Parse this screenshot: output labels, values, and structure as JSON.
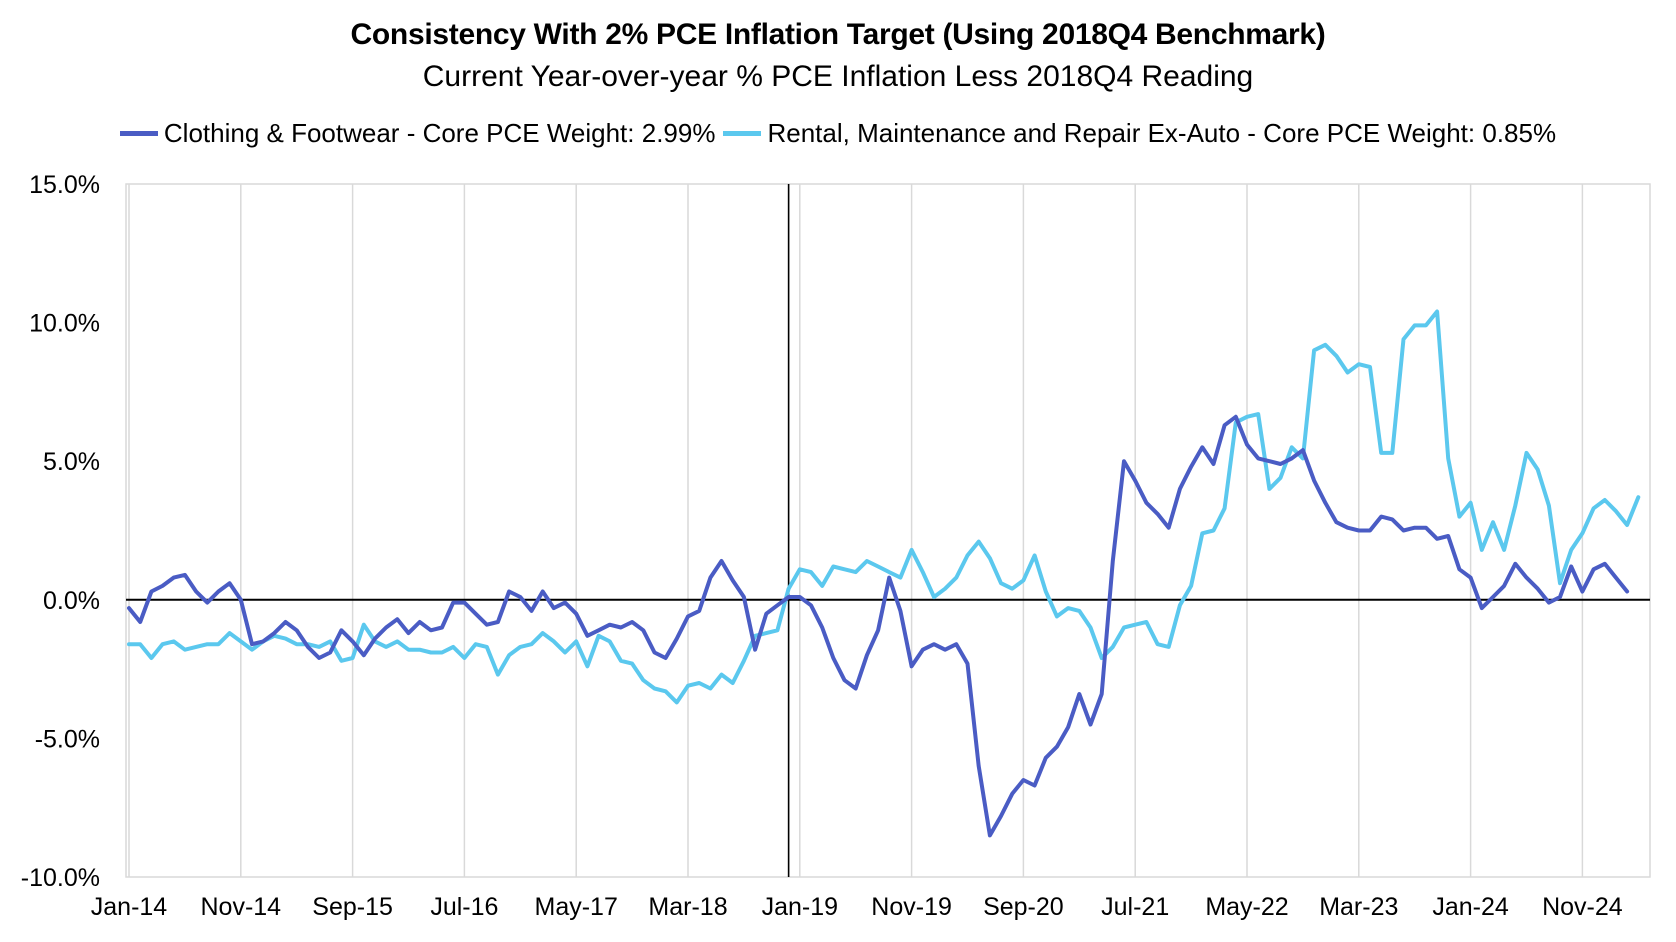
{
  "chart_data": {
    "type": "line",
    "title": "Consistency With 2% PCE Inflation Target (Using 2018Q4 Benchmark)",
    "subtitle": "Current Year-over-year % PCE Inflation Less 2018Q4 Reading",
    "legend_position": "top",
    "grid": "vertical",
    "ylim": [
      -10,
      15
    ],
    "y_ticks": [
      15,
      10,
      5,
      0,
      -5,
      -10
    ],
    "y_tick_labels": [
      "15.0%",
      "10.0%",
      "5.0%",
      "0.0%",
      "-5.0%",
      "-10.0%"
    ],
    "x_start": "2014-01",
    "x_end": "2025-03",
    "x_tick_labels": [
      "Jan-14",
      "Nov-14",
      "Sep-15",
      "Jul-16",
      "May-17",
      "Mar-18",
      "Jan-19",
      "Nov-19",
      "Sep-20",
      "Jul-21",
      "May-22",
      "Mar-23",
      "Jan-24",
      "Nov-24"
    ],
    "reference_line": "Dec-18",
    "series": [
      {
        "name": "Clothing & Footwear - Core PCE Weight: 2.99%",
        "color": "#4a5cc4",
        "values": [
          -0.3,
          -0.8,
          0.3,
          0.5,
          0.8,
          0.9,
          0.3,
          -0.1,
          0.3,
          0.6,
          0.0,
          -1.6,
          -1.5,
          -1.2,
          -0.8,
          -1.1,
          -1.7,
          -2.1,
          -1.9,
          -1.1,
          -1.5,
          -2.0,
          -1.4,
          -1.0,
          -0.7,
          -1.2,
          -0.8,
          -1.1,
          -1.0,
          -0.1,
          -0.1,
          -0.5,
          -0.9,
          -0.8,
          0.3,
          0.1,
          -0.4,
          0.3,
          -0.3,
          -0.1,
          -0.5,
          -1.3,
          -1.1,
          -0.9,
          -1.0,
          -0.8,
          -1.1,
          -1.9,
          -2.1,
          -1.4,
          -0.6,
          -0.4,
          0.8,
          1.4,
          0.7,
          0.1,
          -1.8,
          -0.5,
          -0.2,
          0.1,
          0.1,
          -0.2,
          -1.0,
          -2.1,
          -2.9,
          -3.2,
          -2.0,
          -1.1,
          0.8,
          -0.4,
          -2.4,
          -1.8,
          -1.6,
          -1.8,
          -1.6,
          -2.3,
          -6.0,
          -8.5,
          -7.8,
          -7.0,
          -6.5,
          -6.7,
          -5.7,
          -5.3,
          -4.6,
          -3.4,
          -4.5,
          -3.4,
          1.4,
          5.0,
          4.3,
          3.5,
          3.1,
          2.6,
          4.0,
          4.8,
          5.5,
          4.9,
          6.3,
          6.6,
          5.6,
          5.1,
          5.0,
          4.9,
          5.1,
          5.4,
          4.3,
          3.5,
          2.8,
          2.6,
          2.5,
          2.5,
          3.0,
          2.9,
          2.5,
          2.6,
          2.6,
          2.2,
          2.3,
          1.1,
          0.8,
          -0.3,
          0.1,
          0.5,
          1.3,
          0.8,
          0.4,
          -0.1,
          0.1,
          1.2,
          0.3,
          1.1,
          1.3,
          0.8,
          0.3
        ]
      },
      {
        "name": "Rental, Maintenance and Repair Ex-Auto - Core PCE Weight: 0.85%",
        "color": "#5bc8ee",
        "values": [
          -1.6,
          -1.6,
          -2.1,
          -1.6,
          -1.5,
          -1.8,
          -1.7,
          -1.6,
          -1.6,
          -1.2,
          -1.5,
          -1.8,
          -1.5,
          -1.3,
          -1.4,
          -1.6,
          -1.6,
          -1.7,
          -1.5,
          -2.2,
          -2.1,
          -0.9,
          -1.5,
          -1.7,
          -1.5,
          -1.8,
          -1.8,
          -1.9,
          -1.9,
          -1.7,
          -2.1,
          -1.6,
          -1.7,
          -2.7,
          -2.0,
          -1.7,
          -1.6,
          -1.2,
          -1.5,
          -1.9,
          -1.5,
          -2.4,
          -1.3,
          -1.5,
          -2.2,
          -2.3,
          -2.9,
          -3.2,
          -3.3,
          -3.7,
          -3.1,
          -3.0,
          -3.2,
          -2.7,
          -3.0,
          -2.2,
          -1.3,
          -1.2,
          -1.1,
          0.4,
          1.1,
          1.0,
          0.5,
          1.2,
          1.1,
          1.0,
          1.4,
          1.2,
          1.0,
          0.8,
          1.8,
          1.0,
          0.1,
          0.4,
          0.8,
          1.6,
          2.1,
          1.5,
          0.6,
          0.4,
          0.7,
          1.6,
          0.3,
          -0.6,
          -0.3,
          -0.4,
          -1.0,
          -2.1,
          -1.7,
          -1.0,
          -0.9,
          -0.8,
          -1.6,
          -1.7,
          -0.2,
          0.5,
          2.4,
          2.5,
          3.3,
          6.4,
          6.6,
          6.7,
          4.0,
          4.4,
          5.5,
          5.1,
          9.0,
          9.2,
          8.8,
          8.2,
          8.5,
          8.4,
          5.3,
          5.3,
          9.4,
          9.9,
          9.9,
          10.4,
          5.1,
          3.0,
          3.5,
          1.8,
          2.8,
          1.8,
          3.4,
          5.3,
          4.7,
          3.4,
          0.6,
          1.8,
          2.4,
          3.3,
          3.6,
          3.2,
          2.7,
          3.7
        ]
      }
    ]
  }
}
